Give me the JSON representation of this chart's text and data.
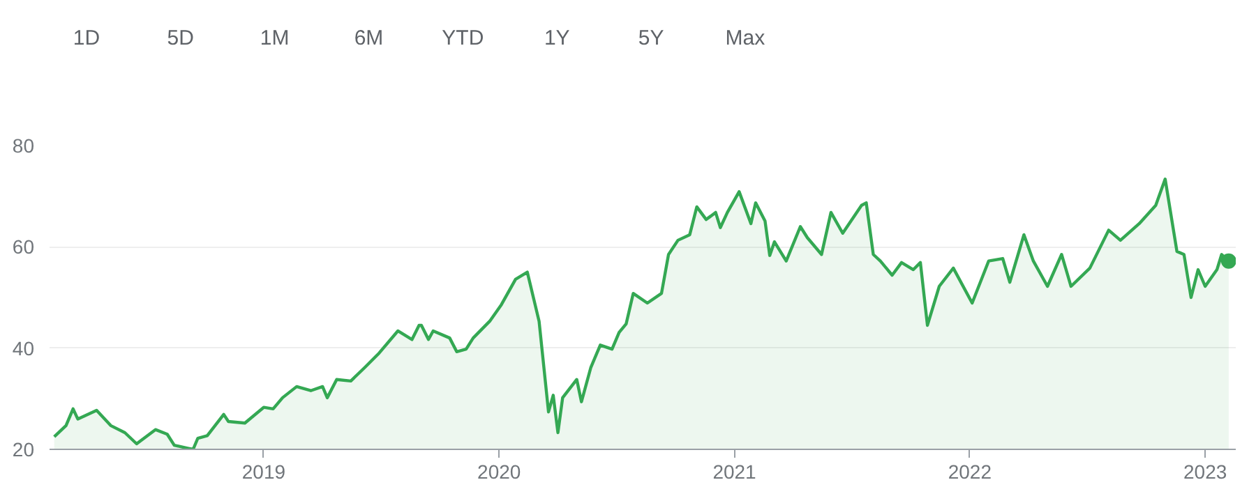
{
  "chart_data": {
    "type": "area",
    "annotations": [
      "1D",
      "5D",
      "1M",
      "6M",
      "YTD",
      "1Y",
      "5Y",
      "Max"
    ],
    "series": [
      {
        "color": "#34a853",
        "x": [
          2018.11,
          2018.16,
          2018.19,
          2018.21,
          2018.29,
          2018.35,
          2018.41,
          2018.46,
          2018.54,
          2018.59,
          2018.62,
          2018.68,
          2018.7,
          2018.72,
          2018.76,
          2018.83,
          2018.85,
          2018.92,
          2019.0,
          2019.04,
          2019.08,
          2019.14,
          2019.2,
          2019.25,
          2019.27,
          2019.31,
          2019.37,
          2019.43,
          2019.49,
          2019.57,
          2019.63,
          2019.66,
          2019.67,
          2019.7,
          2019.72,
          2019.79,
          2019.82,
          2019.86,
          2019.89,
          2019.96,
          2020.01,
          2020.07,
          2020.12,
          2020.17,
          2020.21,
          2020.23,
          2020.25,
          2020.27,
          2020.33,
          2020.35,
          2020.39,
          2020.43,
          2020.48,
          2020.51,
          2020.54,
          2020.57,
          2020.63,
          2020.69,
          2020.72,
          2020.76,
          2020.81,
          2020.84,
          2020.88,
          2020.92,
          2020.94,
          2020.97,
          2021.02,
          2021.07,
          2021.09,
          2021.13,
          2021.15,
          2021.17,
          2021.22,
          2021.28,
          2021.31,
          2021.37,
          2021.41,
          2021.46,
          2021.54,
          2021.56,
          2021.59,
          2021.62,
          2021.67,
          2021.71,
          2021.76,
          2021.79,
          2021.82,
          2021.87,
          2021.93,
          2022.01,
          2022.08,
          2022.14,
          2022.17,
          2022.23,
          2022.27,
          2022.33,
          2022.39,
          2022.43,
          2022.51,
          2022.59,
          2022.64,
          2022.72,
          2022.79,
          2022.83,
          2022.88,
          2022.91,
          2022.94,
          2022.97,
          2023.0,
          2023.05,
          2023.07,
          2023.1
        ],
        "values": [
          22.5,
          24.7,
          28,
          26,
          27.7,
          24.7,
          23.3,
          21.1,
          23.9,
          23,
          20.8,
          20.2,
          20,
          22.2,
          22.7,
          26.9,
          25.5,
          25.2,
          28.3,
          28,
          30.2,
          32.4,
          31.6,
          32.4,
          30.2,
          33.8,
          33.5,
          36.2,
          39,
          43.4,
          41.7,
          44.5,
          44.5,
          41.7,
          43.4,
          42,
          39.3,
          39.8,
          42,
          45.3,
          48.6,
          53.6,
          55,
          45.3,
          27.4,
          30.7,
          23.3,
          30.2,
          33.8,
          29.4,
          36.2,
          40.6,
          39.8,
          43.1,
          44.8,
          50.8,
          48.9,
          50.8,
          58.5,
          61.3,
          62.4,
          67.9,
          65.4,
          66.8,
          63.8,
          66.8,
          70.9,
          64.6,
          68.7,
          65.1,
          58.3,
          61,
          57.2,
          64,
          61.8,
          58.5,
          66.8,
          62.7,
          68.2,
          68.7,
          58.5,
          57.2,
          54.4,
          56.9,
          55.5,
          56.9,
          44.5,
          52.2,
          55.8,
          48.9,
          57.2,
          57.7,
          53,
          62.4,
          57.2,
          52.2,
          58.5,
          52.2,
          55.8,
          63.3,
          61.3,
          64.6,
          68.2,
          73.4,
          59.1,
          58.5,
          50,
          55.5,
          52.2,
          55.5,
          58.5,
          57.2
        ]
      },
      {
        "type": "scatter",
        "marker": "circle",
        "color": "#34a853",
        "x": [
          2023.1
        ],
        "values": [
          57.2
        ]
      }
    ],
    "xlim": [
      2018.09,
      2023.13
    ],
    "xticks": [
      2019,
      2020,
      2021,
      2022,
      2023
    ],
    "ylim": [
      20,
      80
    ],
    "yticks": [
      20,
      40,
      60,
      80
    ],
    "grid": "y"
  }
}
